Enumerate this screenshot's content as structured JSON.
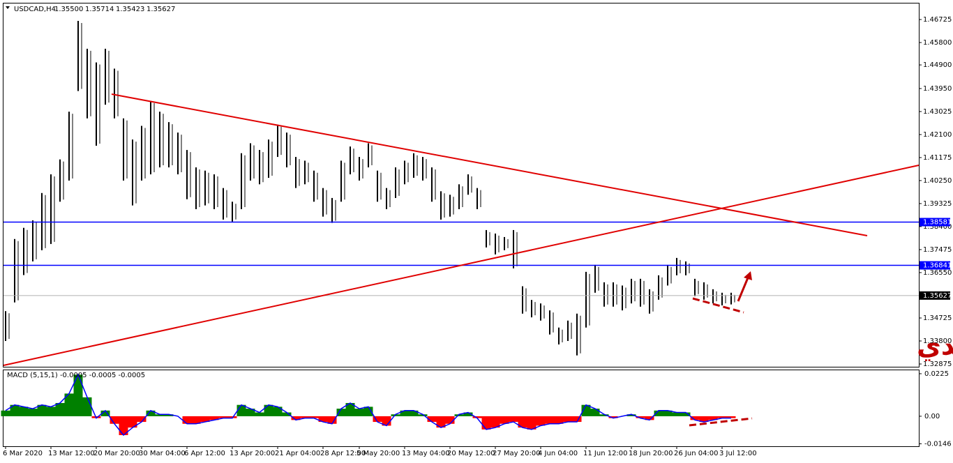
{
  "chart_data": [
    {
      "type": "ohlc",
      "symbol": "USDCAD,H4",
      "ohlc_header": [
        "1.35500",
        "1.35714",
        "1.35423",
        "1.35627"
      ],
      "color": "#000000",
      "categories": [
        "6 Mar 2020",
        null,
        null,
        null,
        null,
        "13 Mar 12:00",
        null,
        null,
        null,
        null,
        "20 Mar 20:00",
        null,
        null,
        null,
        null,
        "30 Mar 04:00",
        null,
        null,
        null,
        null,
        "6 Apr 12:00",
        null,
        null,
        null,
        null,
        "13 Apr 20:00",
        null,
        null,
        null,
        null,
        "21 Apr 04:00",
        null,
        null,
        null,
        null,
        "28 Apr 12:00",
        null,
        null,
        null,
        "5 May 20:00",
        null,
        null,
        null,
        null,
        "13 May 04:00",
        null,
        null,
        null,
        null,
        "20 May 12:00",
        null,
        null,
        null,
        null,
        "27 May 20:00",
        null,
        null,
        null,
        null,
        "4 Jun 04:00",
        null,
        null,
        null,
        null,
        "11 Jun 12:00",
        null,
        null,
        null,
        null,
        "18 Jun 20:00",
        null,
        null,
        null,
        null,
        "26 Jun 04:00",
        null,
        null,
        null,
        null,
        "3 Jul 12:00",
        null
      ],
      "high": [
        1.35,
        1.379,
        1.3835,
        1.3865,
        1.3975,
        1.405,
        1.411,
        1.4302,
        1.4667,
        1.4555,
        1.45,
        1.4555,
        1.4475,
        1.4275,
        1.419,
        1.4245,
        1.4345,
        1.4302,
        1.426,
        1.4218,
        1.4148,
        1.4078,
        1.4065,
        1.405,
        1.3995,
        1.394,
        1.4135,
        1.4175,
        1.4148,
        1.419,
        1.425,
        1.4218,
        1.412,
        1.4105,
        1.4065,
        1.3995,
        1.3955,
        1.4105,
        1.4162,
        1.412,
        1.4175,
        1.4065,
        1.3995,
        1.4078,
        1.4105,
        1.4135,
        1.412,
        1.4078,
        1.3982,
        1.3968,
        1.401,
        1.405,
        1.3995,
        1.3826,
        1.3812,
        1.3798,
        1.3826,
        1.36,
        1.3545,
        1.3531,
        1.3503,
        1.3434,
        1.3462,
        1.349,
        1.3658,
        1.3686,
        1.3616,
        1.3616,
        1.3603,
        1.363,
        1.363,
        1.3588,
        1.3644,
        1.3686,
        1.3714,
        1.37,
        1.363,
        1.3616,
        1.3588,
        1.3574,
        1.3574
      ],
      "low": [
        1.338,
        1.3535,
        1.3645,
        1.37,
        1.3745,
        1.377,
        1.394,
        1.4025,
        1.4385,
        1.4275,
        1.4165,
        1.433,
        1.4275,
        1.4025,
        1.3925,
        1.4025,
        1.405,
        1.4078,
        1.4078,
        1.405,
        1.395,
        1.391,
        1.3925,
        1.391,
        1.3868,
        1.386,
        1.391,
        1.4025,
        1.401,
        1.4036,
        1.412,
        1.4078,
        1.3995,
        1.401,
        1.394,
        1.388,
        1.3855,
        1.394,
        1.405,
        1.4025,
        1.4078,
        1.394,
        1.391,
        1.3955,
        1.401,
        1.4036,
        1.4025,
        1.394,
        1.3868,
        1.388,
        1.391,
        1.3968,
        1.391,
        1.3756,
        1.3728,
        1.3745,
        1.3672,
        1.349,
        1.3475,
        1.3462,
        1.3406,
        1.3366,
        1.338,
        1.3322,
        1.3434,
        1.3574,
        1.3518,
        1.3518,
        1.3503,
        1.3531,
        1.3518,
        1.349,
        1.3546,
        1.3603,
        1.3644,
        1.3644,
        1.356,
        1.3546,
        1.3531,
        1.3523,
        1.3527
      ],
      "ylim": [
        1.32735,
        1.4737
      ],
      "yticks": [
        1.46725,
        {
          "value": 1.458,
          "label": "1.45800"
        },
        {
          "value": 1.449,
          "label": "1.44900"
        },
        {
          "value": 1.4395,
          "label": "1.43950"
        },
        1.43025,
        {
          "value": 1.421,
          "label": "1.42100"
        },
        1.41175,
        {
          "value": 1.4025,
          "label": "1.40250"
        },
        1.39325,
        {
          "value": 1.384,
          "label": "1.38400"
        },
        1.37475,
        {
          "value": 1.3655,
          "label": "1.36550"
        },
        1.34725,
        {
          "value": 1.338,
          "label": "1.33800"
        },
        1.32875
      ],
      "hlines": [
        {
          "value": 1.38581,
          "color": "#0000ff"
        },
        {
          "value": 1.36841,
          "color": "#0000ff"
        }
      ],
      "current_price": 1.35627,
      "annotation": "الدولار كندي"
    },
    {
      "type": "histogram",
      "title": "MACD (5,15,1) -0.0005 -0.0005 -0.0005",
      "positive_color": "#008000",
      "negative_color": "#ff0000",
      "line_color": "#0000ff",
      "values": [
        0.003,
        0.006,
        0.005,
        0.004,
        0.006,
        0.005,
        0.007,
        0.012,
        0.022,
        0.01,
        -0.001,
        0.003,
        -0.004,
        -0.01,
        -0.006,
        -0.003,
        0.003,
        0.001,
        0.001,
        0.0,
        -0.004,
        -0.004,
        -0.003,
        -0.002,
        -0.001,
        -0.001,
        0.006,
        0.004,
        0.002,
        0.006,
        0.005,
        0.002,
        -0.002,
        -0.001,
        -0.001,
        -0.003,
        -0.004,
        0.004,
        0.007,
        0.004,
        0.005,
        -0.003,
        -0.005,
        0.001,
        0.003,
        0.003,
        0.001,
        -0.003,
        -0.006,
        -0.004,
        0.001,
        0.002,
        -0.001,
        -0.007,
        -0.006,
        -0.004,
        -0.003,
        -0.006,
        -0.007,
        -0.005,
        -0.004,
        -0.004,
        -0.003,
        -0.003,
        0.006,
        0.004,
        0.001,
        -0.001,
        0.0,
        0.001,
        -0.001,
        -0.002,
        0.003,
        0.003,
        0.002,
        0.002,
        -0.002,
        -0.003,
        -0.002,
        -0.001,
        -0.001
      ],
      "ylim": [
        -0.0159,
        0.0247
      ],
      "yticks": [
        0.0225,
        {
          "value": 0,
          "label": "0.00"
        },
        -0.0146
      ]
    }
  ]
}
